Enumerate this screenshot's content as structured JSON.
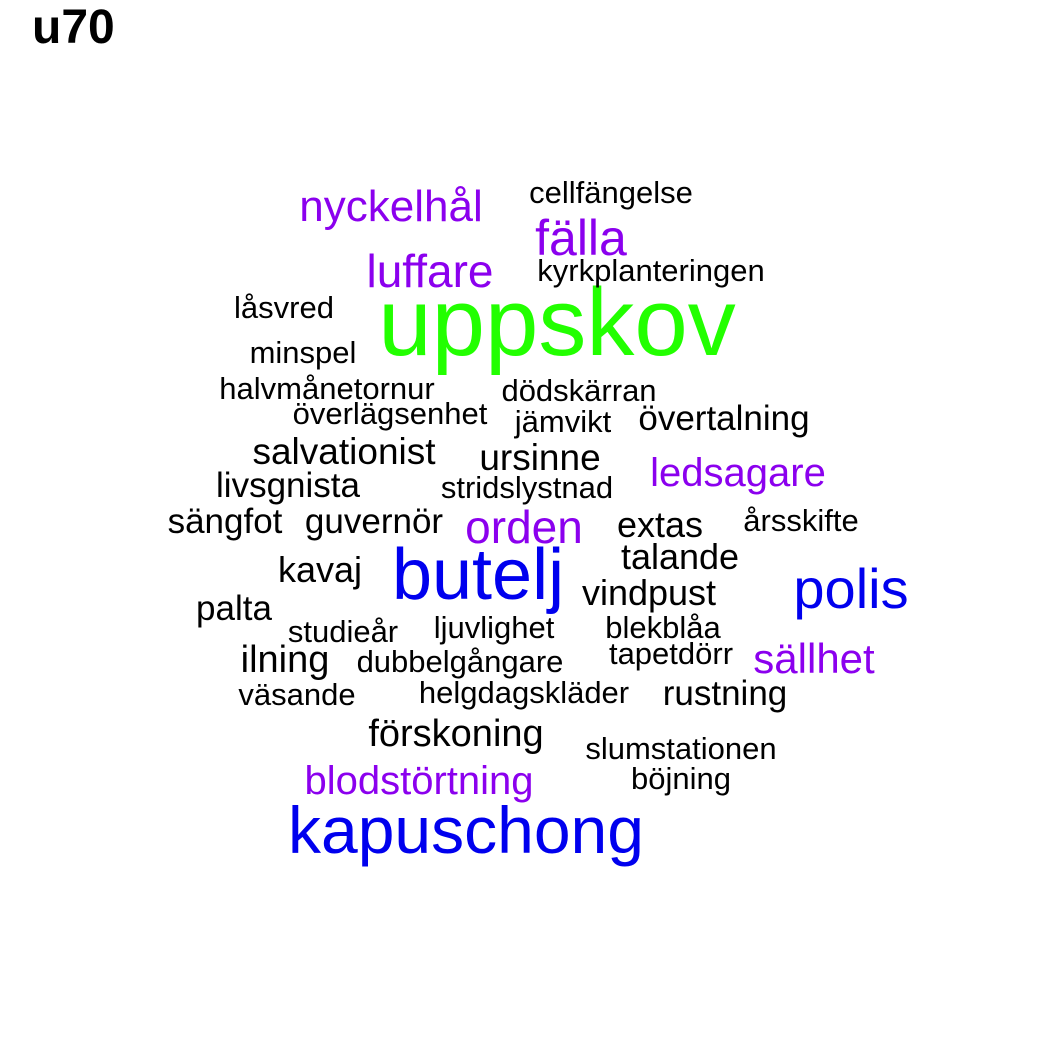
{
  "title": "u70",
  "colors": {
    "black": "#000000",
    "purple": "#8B00EE",
    "green": "#22FF00",
    "blue": "#0000EE"
  },
  "words": [
    {
      "text": "uppskov",
      "color": "green"
    },
    {
      "text": "butelj",
      "color": "blue"
    },
    {
      "text": "kapuschong",
      "color": "blue"
    },
    {
      "text": "polis",
      "color": "blue"
    },
    {
      "text": "nyckelhål",
      "color": "purple"
    },
    {
      "text": "fälla",
      "color": "purple"
    },
    {
      "text": "luffare",
      "color": "purple"
    },
    {
      "text": "ledsagare",
      "color": "purple"
    },
    {
      "text": "orden",
      "color": "purple"
    },
    {
      "text": "sällhet",
      "color": "purple"
    },
    {
      "text": "blodstörtning",
      "color": "purple"
    },
    {
      "text": "cellfängelse",
      "color": "black"
    },
    {
      "text": "kyrkplanteringen",
      "color": "black"
    },
    {
      "text": "låsvred",
      "color": "black"
    },
    {
      "text": "minspel",
      "color": "black"
    },
    {
      "text": "halvmånetornur",
      "color": "black"
    },
    {
      "text": "dödskärran",
      "color": "black"
    },
    {
      "text": "överlägsenhet",
      "color": "black"
    },
    {
      "text": "jämvikt",
      "color": "black"
    },
    {
      "text": "övertalning",
      "color": "black"
    },
    {
      "text": "salvationist",
      "color": "black"
    },
    {
      "text": "ursinne",
      "color": "black"
    },
    {
      "text": "livsgnista",
      "color": "black"
    },
    {
      "text": "stridslystnad",
      "color": "black"
    },
    {
      "text": "sängfot",
      "color": "black"
    },
    {
      "text": "guvernör",
      "color": "black"
    },
    {
      "text": "extas",
      "color": "black"
    },
    {
      "text": "årsskifte",
      "color": "black"
    },
    {
      "text": "talande",
      "color": "black"
    },
    {
      "text": "kavaj",
      "color": "black"
    },
    {
      "text": "vindpust",
      "color": "black"
    },
    {
      "text": "palta",
      "color": "black"
    },
    {
      "text": "studieår",
      "color": "black"
    },
    {
      "text": "ljuvlighet",
      "color": "black"
    },
    {
      "text": "blekblåa",
      "color": "black"
    },
    {
      "text": "ilning",
      "color": "black"
    },
    {
      "text": "dubbelgångare",
      "color": "black"
    },
    {
      "text": "tapetdörr",
      "color": "black"
    },
    {
      "text": "väsande",
      "color": "black"
    },
    {
      "text": "helgdagskläder",
      "color": "black"
    },
    {
      "text": "rustning",
      "color": "black"
    },
    {
      "text": "förskoning",
      "color": "black"
    },
    {
      "text": "slumstationen",
      "color": "black"
    },
    {
      "text": "böjning",
      "color": "black"
    }
  ]
}
